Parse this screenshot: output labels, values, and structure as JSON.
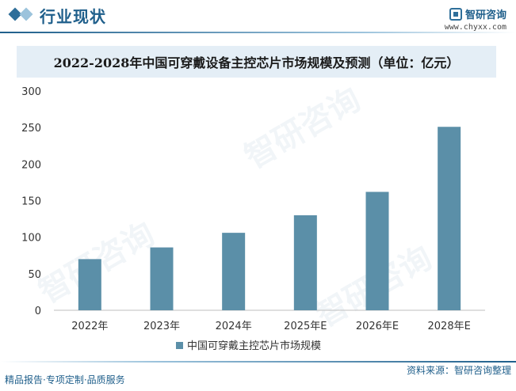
{
  "header": {
    "title": "行业现状",
    "logo_name": "智研咨询",
    "logo_url": "www.chyxx.com",
    "watermark": "智研咨询"
  },
  "chart_data": {
    "type": "bar",
    "title": "2022-2028年中国可穿戴设备主控芯片市场规模及预测（单位：亿元）",
    "categories": [
      "2022年",
      "2023年",
      "2024年",
      "2025年E",
      "2026年E",
      "2028年E"
    ],
    "series": [
      {
        "name": "中国可穿戴主控芯片市场规模",
        "values": [
          70,
          86,
          106,
          130,
          162,
          251
        ]
      }
    ],
    "ylim": [
      0,
      300
    ],
    "yticks": [
      0,
      50,
      100,
      150,
      200,
      250,
      300
    ],
    "xlabel": "",
    "ylabel": "",
    "grid": false,
    "legend_position": "bottom",
    "colors": {
      "bar": "#5b8fa8"
    }
  },
  "footer": {
    "left_text": "精品报告·专项定制·品质服务",
    "right_text": "资料来源：智研咨询整理"
  }
}
